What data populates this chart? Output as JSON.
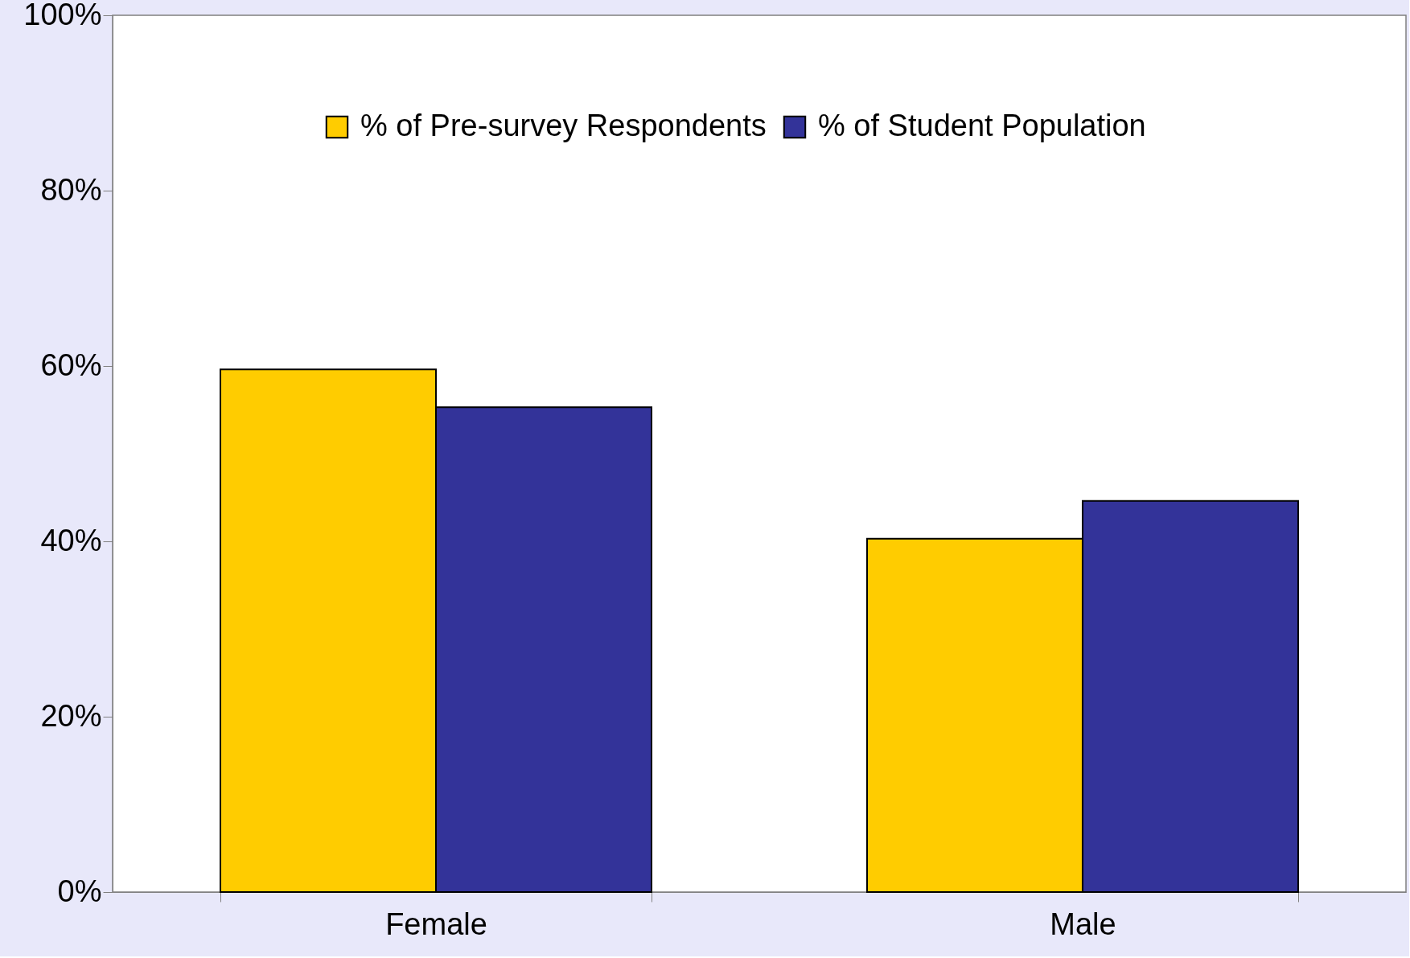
{
  "chart_data": {
    "type": "bar",
    "categories": [
      "Female",
      "Male"
    ],
    "series": [
      {
        "name": "% of Pre-survey Respondents",
        "color": "#ffcc00",
        "values": [
          59.6,
          40.3
        ]
      },
      {
        "name": "% of Student Population",
        "color": "#333399",
        "values": [
          55.3,
          44.6
        ]
      }
    ],
    "ylim": [
      0,
      100
    ],
    "yticks": [
      {
        "value": 0,
        "label": "0%"
      },
      {
        "value": 20,
        "label": "20%"
      },
      {
        "value": 40,
        "label": "40%"
      },
      {
        "value": 60,
        "label": "60%"
      },
      {
        "value": 80,
        "label": "80%"
      },
      {
        "value": 100,
        "label": "100%"
      }
    ],
    "grid": false,
    "legend": "top"
  }
}
